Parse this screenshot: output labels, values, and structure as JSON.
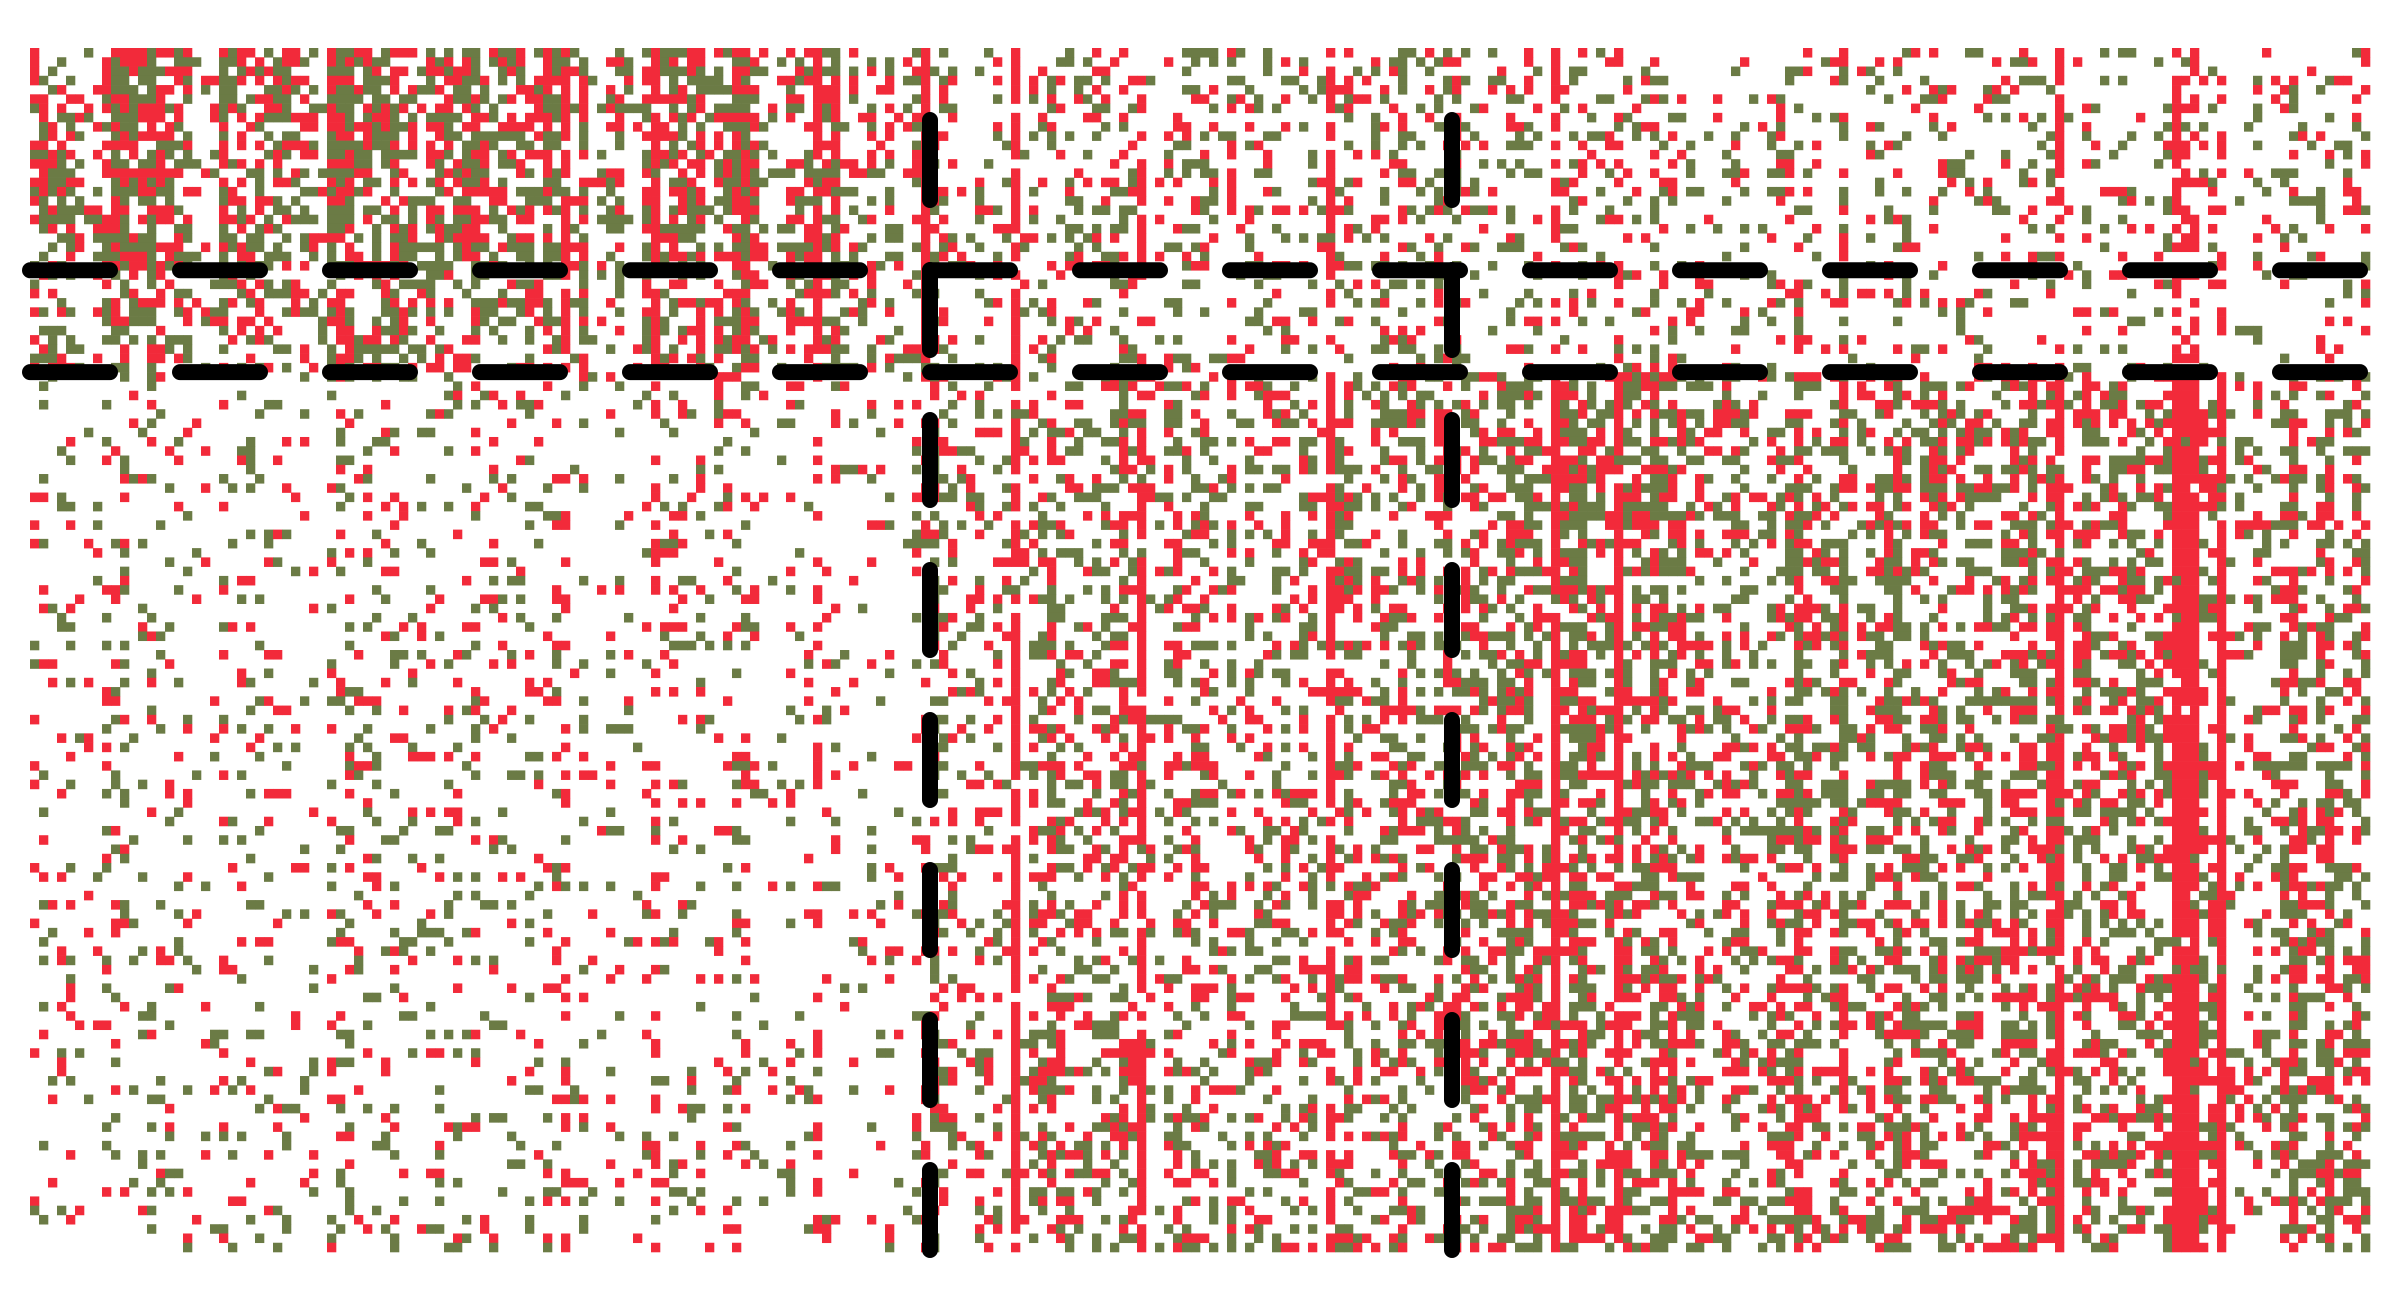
{
  "chart_data": {
    "type": "heatmap",
    "title": "",
    "xlabel": "",
    "ylabel": "",
    "grid": false,
    "legend": "none",
    "axes_visible": false,
    "n_columns": 260,
    "n_rows": 130,
    "colors": {
      "positive": "#f22a3a",
      "negative": "#6b7b45",
      "background": "#ffffff",
      "separator": "#000000"
    },
    "separators": {
      "column_breaks": [
        100,
        158
      ],
      "row_breaks": [
        24,
        35
      ]
    },
    "blocks": [
      {
        "rows": "0-23",
        "cols": "0-99",
        "density": 0.62
      },
      {
        "rows": "0-23",
        "cols": "100-157",
        "density": 0.34
      },
      {
        "rows": "0-23",
        "cols": "158-259",
        "density": 0.24
      },
      {
        "rows": "24-34",
        "cols": "0-99",
        "density": 0.48
      },
      {
        "rows": "24-34",
        "cols": "100-157",
        "density": 0.26
      },
      {
        "rows": "24-34",
        "cols": "158-259",
        "density": 0.2
      },
      {
        "rows": "35-129",
        "cols": "0-99",
        "density": 0.16
      },
      {
        "rows": "35-129",
        "cols": "100-157",
        "density": 0.4
      },
      {
        "rows": "35-129",
        "cols": "158-259",
        "density": 0.52
      }
    ],
    "red_share": 0.45
  }
}
